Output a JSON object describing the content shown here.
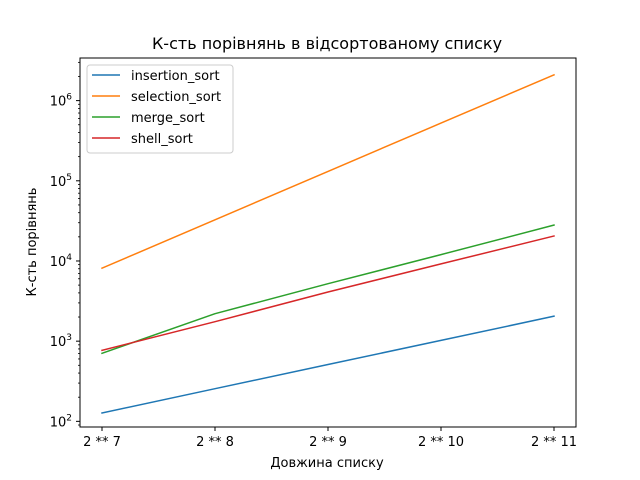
{
  "chart_data": {
    "type": "line",
    "title": "К-сть порівнянь в відсортованому списку",
    "xlabel": "Довжина списку",
    "ylabel": "К-сть порівнянь",
    "yscale": "log",
    "ylim": [
      85,
      3400000
    ],
    "categories": [
      "2 ** 7",
      "2 ** 8",
      "2 ** 9",
      "2 ** 10",
      "2 ** 11"
    ],
    "y_ticks": [
      {
        "base": "10",
        "exp": "2",
        "value": 100
      },
      {
        "base": "10",
        "exp": "3",
        "value": 1000
      },
      {
        "base": "10",
        "exp": "4",
        "value": 10000
      },
      {
        "base": "10",
        "exp": "5",
        "value": 100000
      },
      {
        "base": "10",
        "exp": "6",
        "value": 1000000
      }
    ],
    "legend_position": "top-left",
    "grid": false,
    "series": [
      {
        "name": "insertion_sort",
        "color": "#1f77b4",
        "values": [
          127,
          255,
          511,
          1023,
          2047
        ]
      },
      {
        "name": "selection_sort",
        "color": "#ff7f0e",
        "values": [
          8128,
          32640,
          130816,
          523776,
          2096128
        ]
      },
      {
        "name": "merge_sort",
        "color": "#2ca02c",
        "values": [
          705,
          2200,
          5200,
          12000,
          28000
        ]
      },
      {
        "name": "shell_sort",
        "color": "#d62728",
        "values": [
          770,
          1750,
          4100,
          9200,
          20500
        ]
      }
    ]
  }
}
